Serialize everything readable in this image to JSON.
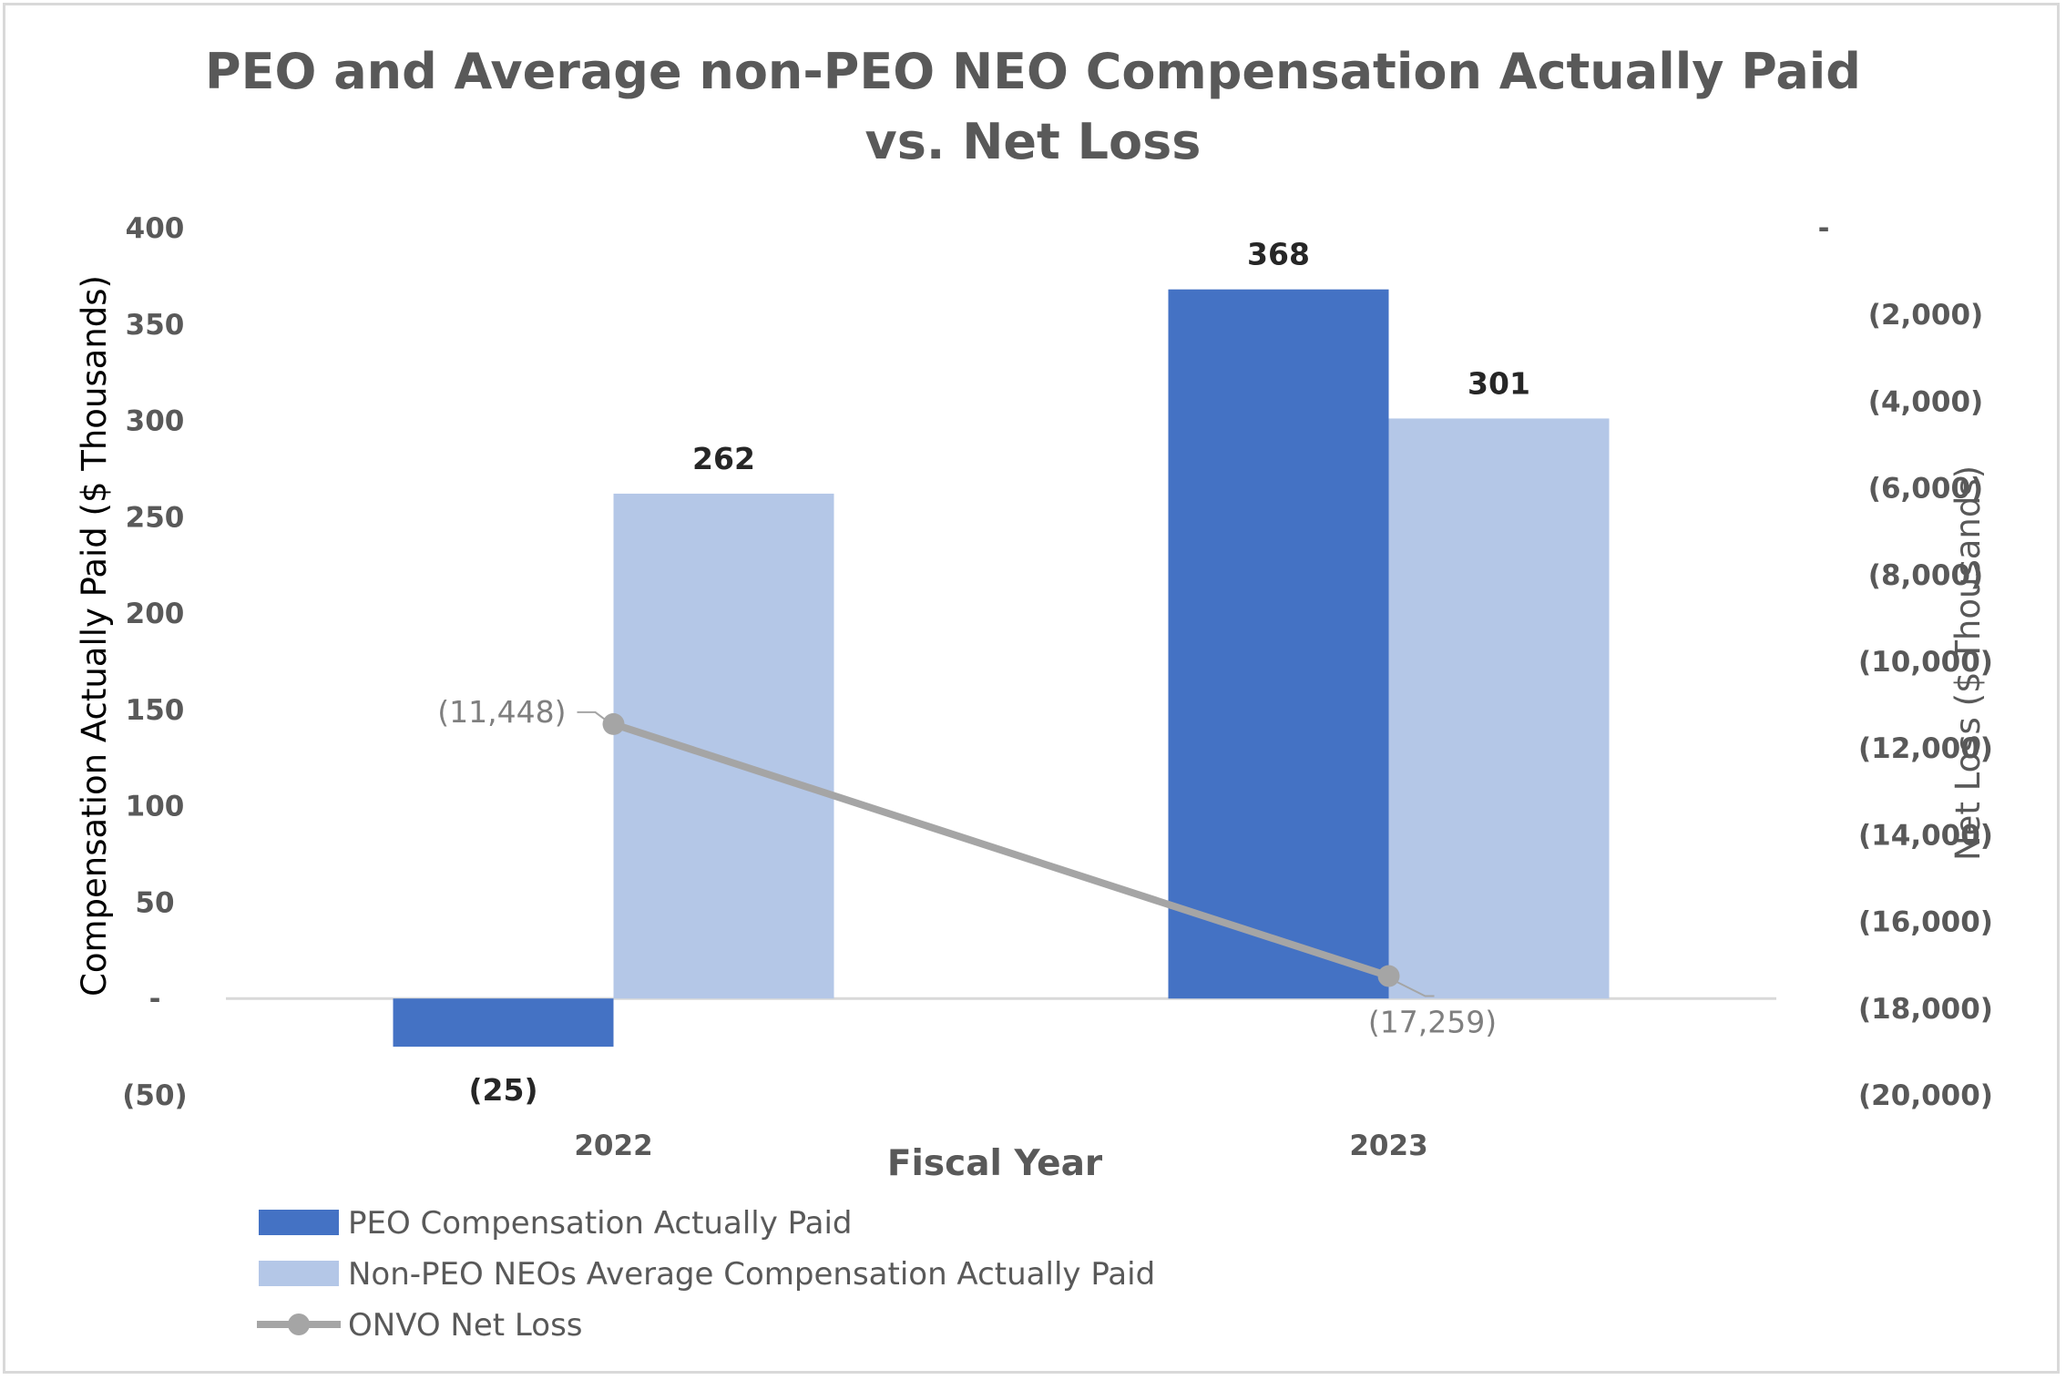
{
  "chart_data": {
    "type": "bar",
    "title_lines": [
      "PEO and Average non-PEO NEO Compensation Actually Paid",
      "vs. Net Loss"
    ],
    "xlabel": "Fiscal Year",
    "ylabel": "Compensation Actually Paid ($ Thousands)",
    "y2label": "Net Loss ($ Thousands)",
    "categories": [
      "2022",
      "2023"
    ],
    "ylim": [
      -50,
      400
    ],
    "y_ticks": [
      400,
      350,
      300,
      250,
      200,
      150,
      100,
      50,
      0,
      -50
    ],
    "y_tick_labels": [
      "400",
      "350",
      "300",
      "250",
      "200",
      "150",
      "100",
      "50",
      "-",
      "(50)"
    ],
    "y2lim": [
      -20000,
      0
    ],
    "y2_ticks": [
      0,
      -2000,
      -4000,
      -6000,
      -8000,
      -10000,
      -12000,
      -14000,
      -16000,
      -18000,
      -20000
    ],
    "y2_tick_labels": [
      "-",
      "(2,000)",
      "(4,000)",
      "(6,000)",
      "(8,000)",
      "(10,000)",
      "(12,000)",
      "(14,000)",
      "(16,000)",
      "(18,000)",
      "(20,000)"
    ],
    "series": [
      {
        "name": "PEO Compensation Actually Paid",
        "kind": "bar",
        "axis": "left",
        "color": "#4472c4",
        "values": [
          -25,
          368
        ],
        "labels": [
          "(25)",
          "368"
        ]
      },
      {
        "name": "Non-PEO NEOs Average Compensation Actually Paid",
        "kind": "bar",
        "axis": "left",
        "color": "#b4c7e7",
        "values": [
          262,
          301
        ],
        "labels": [
          "262",
          "301"
        ]
      },
      {
        "name": "ONVO Net Loss",
        "kind": "line",
        "axis": "right",
        "color": "#a5a5a5",
        "values": [
          -11448,
          -17259
        ],
        "labels": [
          "(11,448)",
          "(17,259)"
        ]
      }
    ],
    "legend_position": "bottom-left"
  }
}
